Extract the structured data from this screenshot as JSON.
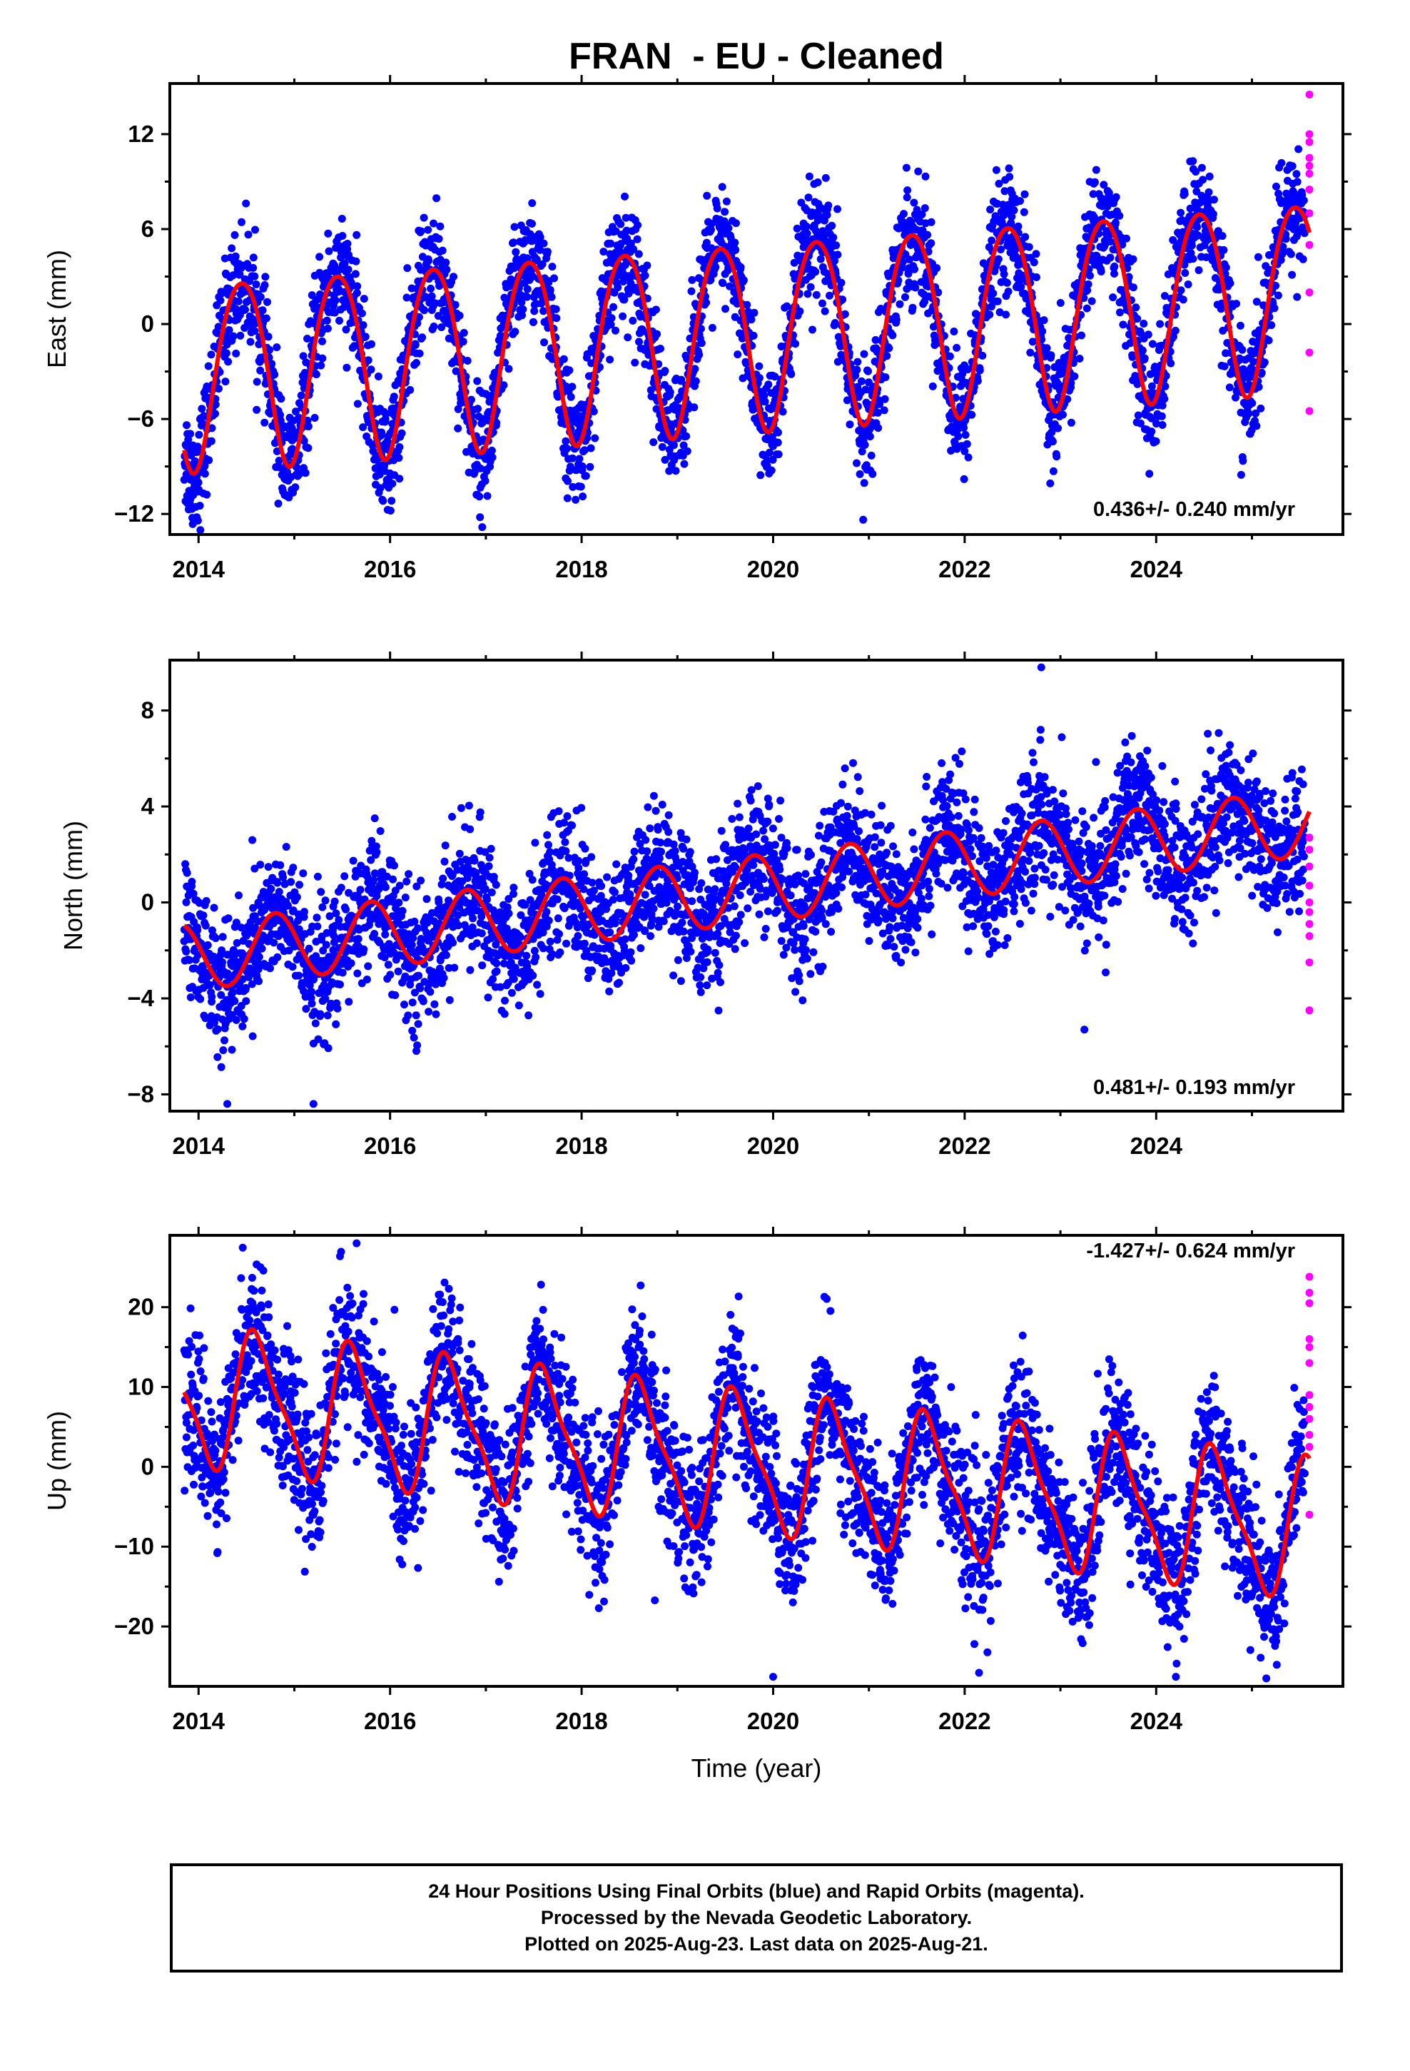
{
  "title": "FRAN  - EU - Cleaned",
  "xlabel": "Time (year)",
  "footer": [
    "24 Hour Positions Using Final Orbits (blue) and Rapid Orbits (magenta).",
    "Processed by the Nevada Geodetic Laboratory.",
    "Plotted on 2025-Aug-23. Last data on 2025-Aug-21."
  ],
  "colors": {
    "final": "#0000ff",
    "rapid": "#ff00ff",
    "model": "#ff0000"
  },
  "chart_data": [
    {
      "type": "scatter",
      "ylabel": "East (mm)",
      "rate_label": "0.436+/- 0.240 mm/yr",
      "xlim": [
        2013.7,
        2025.95
      ],
      "ylim": [
        -13.3,
        15.2
      ],
      "yticks": [
        12,
        6,
        0,
        -6,
        -12
      ],
      "ytick_labels": [
        "12",
        "6",
        "0",
        "−6",
        "−12"
      ],
      "xticks": [
        2014,
        2016,
        2018,
        2020,
        2022,
        2024
      ],
      "xtick_labels": [
        "2014",
        "2016",
        "2018",
        "2020",
        "2022",
        "2024"
      ],
      "series": [
        {
          "kind": "final",
          "x_range": [
            2013.85,
            2025.55
          ],
          "model": {
            "offset": -3.0,
            "rate": 0.436,
            "t0": 2013.85,
            "amp": 5.9,
            "phase": 2024.45,
            "semi": 0.6,
            "semi_phase": 2024.2
          },
          "noise_sd": 1.8,
          "count": 3600
        },
        {
          "kind": "rapid",
          "x": [
            2025.6,
            2025.6,
            2025.6,
            2025.6,
            2025.6,
            2025.6,
            2025.6,
            2025.6,
            2025.6,
            2025.6,
            2025.6,
            2025.6
          ],
          "y": [
            14.5,
            12.0,
            11.5,
            10.5,
            10.0,
            9.5,
            8.5,
            7.0,
            5.0,
            2.0,
            -1.8,
            -5.5
          ]
        },
        {
          "kind": "model",
          "name": "",
          "x_range": [
            2013.85,
            2025.6
          ],
          "model": {
            "offset": -3.0,
            "rate": 0.436,
            "t0": 2013.85,
            "amp": 5.9,
            "phase": 2024.45,
            "semi": 0.6,
            "semi_phase": 2024.2
          }
        }
      ]
    },
    {
      "type": "scatter",
      "ylabel": "North (mm)",
      "rate_label": "0.481+/- 0.193 mm/yr",
      "xlim": [
        2013.7,
        2025.95
      ],
      "ylim": [
        -8.7,
        10.1
      ],
      "yticks": [
        8,
        4,
        0,
        -4,
        -8
      ],
      "ytick_labels": [
        "8",
        "4",
        "0",
        "−4",
        "−8"
      ],
      "xticks": [
        2014,
        2016,
        2018,
        2020,
        2022,
        2024
      ],
      "xtick_labels": [
        "2014",
        "2016",
        "2018",
        "2020",
        "2022",
        "2024"
      ],
      "series": [
        {
          "kind": "final",
          "x_range": [
            2013.85,
            2025.55
          ],
          "model": {
            "offset": -2.3,
            "rate": 0.481,
            "t0": 2013.85,
            "amp": 1.4,
            "phase": 2024.8,
            "semi": 0.0,
            "semi_phase": 2024.0
          },
          "noise_sd": 1.35,
          "count": 3600,
          "outliers": [
            [
              2022.8,
              9.8
            ],
            [
              2023.25,
              -5.3
            ],
            [
              2014.3,
              -8.4
            ],
            [
              2015.2,
              -8.4
            ]
          ]
        },
        {
          "kind": "rapid",
          "x": [
            2025.6,
            2025.6,
            2025.6,
            2025.6,
            2025.6,
            2025.6,
            2025.6,
            2025.6,
            2025.6,
            2025.6
          ],
          "y": [
            2.7,
            2.2,
            1.5,
            0.7,
            0.0,
            -0.4,
            -0.9,
            -1.4,
            -2.5,
            -4.5
          ]
        },
        {
          "kind": "model",
          "name": "",
          "x_range": [
            2013.85,
            2025.6
          ],
          "model": {
            "offset": -2.3,
            "rate": 0.481,
            "t0": 2013.85,
            "amp": 1.4,
            "phase": 2024.8,
            "semi": 0.0,
            "semi_phase": 2024.0
          }
        }
      ]
    },
    {
      "type": "scatter",
      "ylabel": "Up (mm)",
      "rate_label": "-1.427+/- 0.624 mm/yr",
      "xlim": [
        2013.7,
        2025.95
      ],
      "ylim": [
        -27.5,
        29.0
      ],
      "yticks": [
        20,
        10,
        0,
        -10,
        -20
      ],
      "ytick_labels": [
        "20",
        "10",
        "0",
        "−10",
        "−20"
      ],
      "xticks": [
        2014,
        2016,
        2018,
        2020,
        2022,
        2024
      ],
      "xtick_labels": [
        "2014",
        "2016",
        "2018",
        "2020",
        "2022",
        "2024"
      ],
      "series": [
        {
          "kind": "final",
          "x_range": [
            2013.85,
            2025.55
          ],
          "model": {
            "offset": 9.0,
            "rate": -1.427,
            "t0": 2013.85,
            "amp": 8.2,
            "phase": 2024.62,
            "semi": 2.2,
            "semi_phase": 2024.5
          },
          "noise_sd": 4.5,
          "count": 3600,
          "outliers": [
            [
              2015.65,
              28.0
            ],
            [
              2020.0,
              -26.3
            ],
            [
              2025.15,
              -26.5
            ],
            [
              2022.15,
              -25.8
            ]
          ]
        },
        {
          "kind": "rapid",
          "x": [
            2025.6,
            2025.6,
            2025.6,
            2025.6,
            2025.6,
            2025.6,
            2025.6,
            2025.6,
            2025.6,
            2025.6,
            2025.6,
            2025.6
          ],
          "y": [
            23.8,
            21.8,
            20.5,
            16.0,
            15.0,
            13.0,
            9.0,
            7.5,
            6.0,
            4.0,
            2.5,
            -6.0
          ]
        },
        {
          "kind": "model",
          "name": "",
          "x_range": [
            2013.85,
            2025.6
          ],
          "model": {
            "offset": 9.0,
            "rate": -1.427,
            "t0": 2013.85,
            "amp": 8.2,
            "phase": 2024.62,
            "semi": 2.2,
            "semi_phase": 2024.5
          }
        }
      ]
    }
  ]
}
